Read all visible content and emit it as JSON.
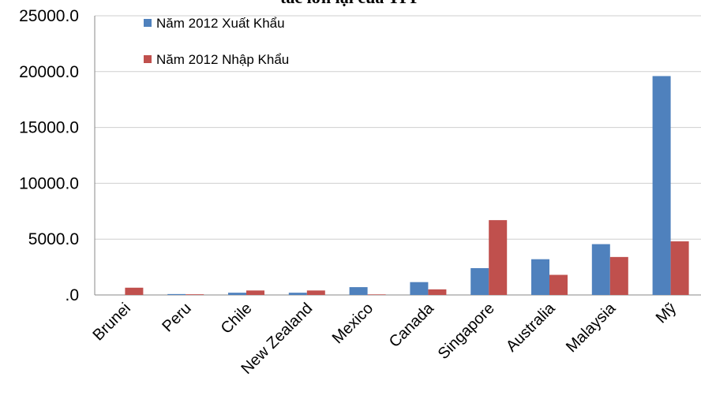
{
  "chart_data": {
    "type": "bar",
    "title": "tác lớn lại của TPP",
    "categories": [
      "Brunei",
      "Peru",
      "Chile",
      "New Zealand",
      "Mexico",
      "Canada",
      "Singapore",
      "Australia",
      "Malaysia",
      "Mỹ"
    ],
    "series": [
      {
        "name": "Năm 2012 Xuất Khẩu",
        "color": "#4f81bd",
        "values": [
          0,
          80,
          200,
          200,
          700,
          1150,
          2400,
          3200,
          4550,
          19600
        ]
      },
      {
        "name": "Năm 2012 Nhập Khẩu",
        "color": "#c0504d",
        "values": [
          650,
          60,
          400,
          400,
          50,
          500,
          6700,
          1800,
          3400,
          4800
        ]
      }
    ],
    "yticks": [
      "25000.0",
      "20000.0",
      "15000.0",
      "10000.0",
      "5000.0",
      ".0"
    ],
    "ylim": [
      0,
      25000
    ],
    "grid": true,
    "legend": "top-left"
  }
}
